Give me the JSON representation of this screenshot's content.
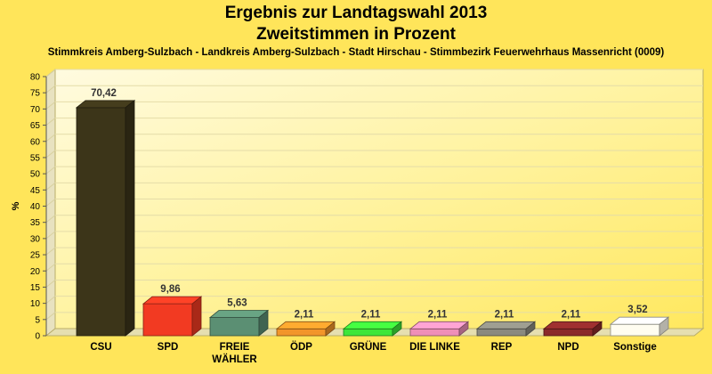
{
  "chart_data": {
    "type": "bar",
    "title": [
      "Ergebnis zur Landtagswahl 2013",
      "Zweitstimmen in Prozent"
    ],
    "subtitle": "Stimmkreis Amberg-Sulzbach - Landkreis Amberg-Sulzbach - Stadt Hirschau - Stimmbezirk Feuerwehrhaus Massenricht (0009)",
    "ylabel": "%",
    "ylim": [
      0,
      80
    ],
    "ytick_step": 5,
    "categories": [
      "CSU",
      "SPD",
      "FREIE\nWÄHLER",
      "ÖDP",
      "GRÜNE",
      "DIE LINKE",
      "REP",
      "NPD",
      "Sonstige"
    ],
    "values": [
      70.42,
      9.86,
      5.63,
      2.11,
      2.11,
      2.11,
      2.11,
      2.11,
      3.52
    ],
    "value_labels": [
      "70,42",
      "9,86",
      "5,63",
      "2,11",
      "2,11",
      "2,11",
      "2,11",
      "2,11",
      "3,52"
    ],
    "colors": [
      "#3c3519",
      "#f23a22",
      "#5b8f73",
      "#f2952a",
      "#3de639",
      "#ef8fb8",
      "#8a8a7f",
      "#8b2a2a",
      "#fffdf0"
    ],
    "grid": true,
    "legend": "none"
  }
}
